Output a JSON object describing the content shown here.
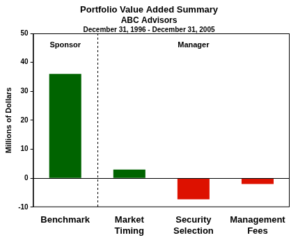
{
  "chart_data": {
    "type": "bar",
    "title": "Portfolio Value Added Summary",
    "subtitle": [
      "ABC Advisors",
      "December 31, 1996 - December 31, 2005"
    ],
    "y_label": "Millions of Dollars",
    "annotations": [
      "Sponsor",
      "Manager"
    ],
    "categories": [
      "Benchmark",
      "Market Timing",
      "Security Selection",
      "Management Fees"
    ],
    "values": [
      36,
      3,
      -7.3,
      -2
    ],
    "colors": [
      "#006400",
      "#006400",
      "#dd1100",
      "#dd1100"
    ],
    "ylim": [
      -10,
      50
    ],
    "yticks": [
      -10,
      0,
      10,
      20,
      30,
      40,
      50
    ],
    "grid": false,
    "legend": false
  }
}
